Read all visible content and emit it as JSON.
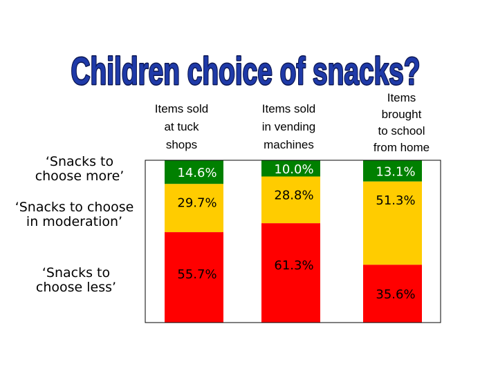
{
  "title": "Children choice of snacks?",
  "colors": {
    "title_fill": "#1f3aa8",
    "title_outline": "#0a1550",
    "more": "#008000",
    "moderation": "#ffcc00",
    "less": "#ff0000",
    "frame": "#000000"
  },
  "chart_data": {
    "type": "bar",
    "stacked": true,
    "percent_stacked": true,
    "categories": [
      "Items sold at tuck shops",
      "Items sold in vending machines",
      "Items brought to school from home"
    ],
    "category_labels": [
      [
        "Items sold",
        "at tuck",
        "shops"
      ],
      [
        "Items sold",
        "in vending",
        "machines"
      ],
      [
        "Items",
        "brought",
        "to school",
        "from home"
      ]
    ],
    "series": [
      {
        "name": "‘Snacks to choose more’",
        "name_lines": [
          "‘Snacks to",
          "choose more’"
        ],
        "color": "#008000",
        "values": [
          14.6,
          10.0,
          13.1
        ]
      },
      {
        "name": "‘Snacks to choose in moderation’",
        "name_lines": [
          "‘Snacks to choose",
          "in moderation’"
        ],
        "color": "#ffcc00",
        "values": [
          29.7,
          28.8,
          51.3
        ]
      },
      {
        "name": "‘Snacks to choose less’",
        "name_lines": [
          "‘Snacks to",
          "choose less’"
        ],
        "color": "#ff0000",
        "values": [
          55.7,
          61.3,
          35.6
        ]
      }
    ],
    "data_labels": [
      [
        "14.6%",
        "10.0%",
        "13.1%"
      ],
      [
        "29.7%",
        "28.8%",
        "51.3%"
      ],
      [
        "55.7%",
        "61.3%",
        "35.6%"
      ]
    ],
    "ylim": [
      0,
      100
    ],
    "grid": false,
    "legend": "left"
  }
}
